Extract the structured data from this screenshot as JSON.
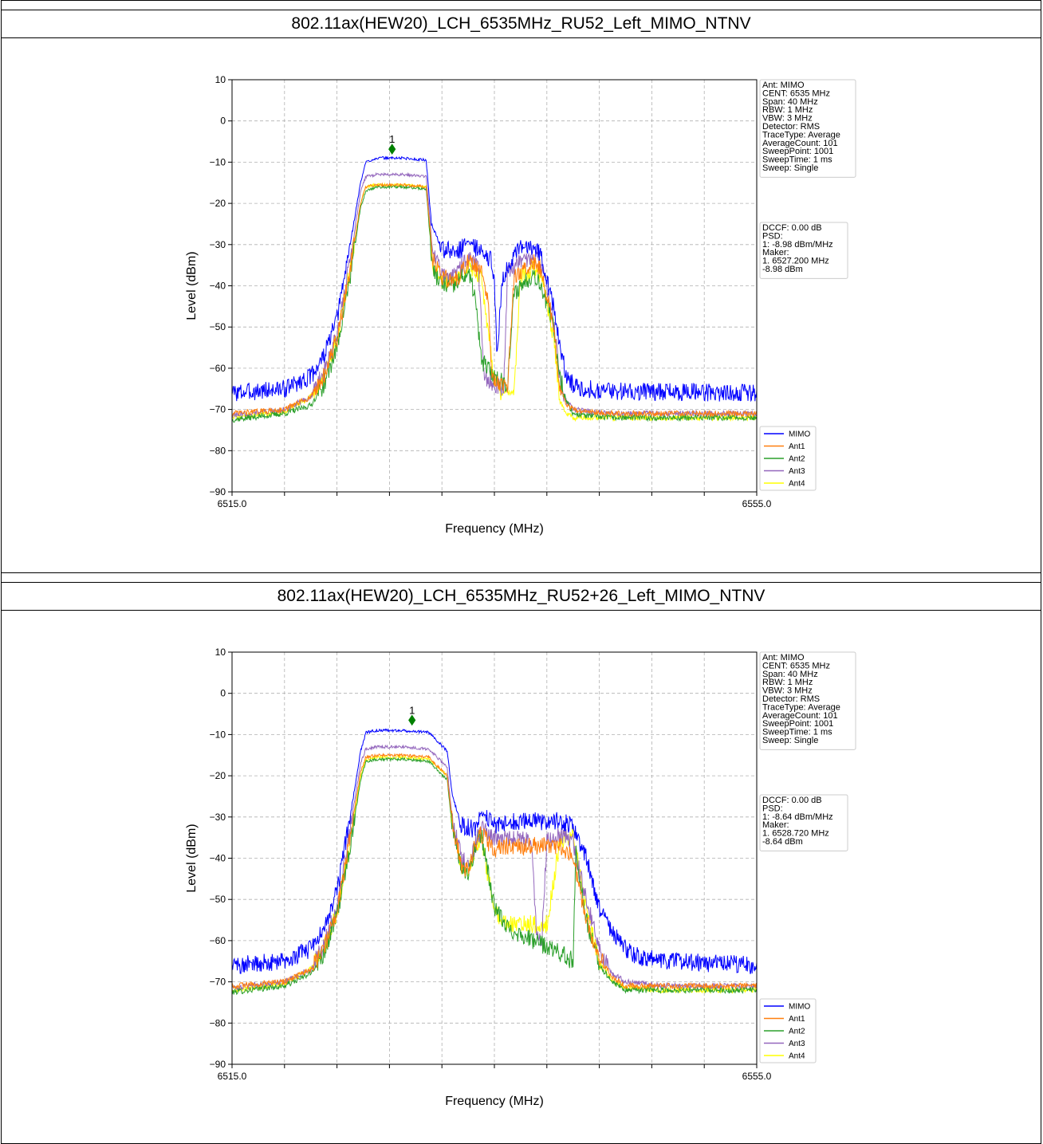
{
  "colors": {
    "MIMO": "#0000ff",
    "Ant1": "#ff7f0e",
    "Ant2": "#2ca02c",
    "Ant3": "#9467bd",
    "Ant4": "#ffff00",
    "marker": "#008000",
    "grid": "#b0b0b0"
  },
  "chart_data": [
    {
      "type": "line",
      "title": "802.11ax(HEW20)_LCH_6535MHz_RU52_Left_MIMO_NTNV",
      "xlabel": "Frequency (MHz)",
      "ylabel": "Level (dBm)",
      "xlim": [
        6515.0,
        6555.0
      ],
      "ylim": [
        -90,
        10
      ],
      "x_tick_labels": [
        "6515.0",
        "6555.0"
      ],
      "x_tick_values": [
        6515,
        6519,
        6523,
        6527,
        6531,
        6535,
        6539,
        6543,
        6547,
        6551,
        6555
      ],
      "y_ticks": [
        10,
        0,
        -10,
        -20,
        -30,
        -40,
        -50,
        -60,
        -70,
        -80,
        -90
      ],
      "grid": true,
      "legend_position": "lower-right outside",
      "info_box": [
        "Ant: MIMO",
        "CENT: 6535 MHz",
        "Span: 40 MHz",
        "RBW: 1 MHz",
        "VBW: 3 MHz",
        "Detector: RMS",
        "TraceType: Average",
        "AverageCount: 101",
        "SweepPoint: 1001",
        "SweepTime: 1 ms",
        "Sweep: Single"
      ],
      "result_box": [
        "DCCF: 0.00 dB",
        "PSD:",
        "1: -8.98 dBm/MHz",
        "Maker:",
        "1. 6527.200 MHz",
        "   -8.98 dBm"
      ],
      "marker": {
        "label": "1",
        "x": 6527.2,
        "y": -8.98
      },
      "series": [
        {
          "name": "MIMO",
          "x": [
            6515,
            6519,
            6521,
            6522,
            6523,
            6524,
            6524.8,
            6525.2,
            6526,
            6528,
            6529.8,
            6530.2,
            6531,
            6532,
            6532.5,
            6533,
            6534,
            6534.8,
            6535,
            6535.2,
            6535.6,
            6536,
            6536.5,
            6537,
            6538,
            6538.6,
            6539.5,
            6540,
            6540.5,
            6541,
            6542,
            6544,
            6555
          ],
          "y": [
            -66,
            -65,
            -62,
            -57,
            -48,
            -30,
            -15,
            -10,
            -9,
            -9,
            -9.5,
            -25,
            -31,
            -32,
            -31,
            -29,
            -32,
            -34,
            -38,
            -58,
            -38,
            -36,
            -33,
            -31,
            -30,
            -33,
            -45,
            -55,
            -62,
            -64,
            -65,
            -65.5,
            -66
          ]
        },
        {
          "name": "Ant1",
          "x": [
            6515,
            6519,
            6521,
            6522,
            6523,
            6524,
            6524.8,
            6525.2,
            6526,
            6528,
            6529.8,
            6530.3,
            6531,
            6532,
            6532.5,
            6533,
            6534,
            6534.5,
            6534.8,
            6535.4,
            6536,
            6536.5,
            6537,
            6538,
            6538.6,
            6539.5,
            6540,
            6540.5,
            6541,
            6542,
            6544,
            6555
          ],
          "y": [
            -71,
            -70,
            -67,
            -62,
            -53,
            -36,
            -20,
            -16,
            -15.5,
            -15.5,
            -16,
            -33,
            -38,
            -39,
            -37,
            -34,
            -37,
            -43,
            -62,
            -64,
            -65,
            -38,
            -37,
            -34,
            -36,
            -50,
            -65,
            -69,
            -70,
            -70.5,
            -71,
            -71
          ]
        },
        {
          "name": "Ant2",
          "x": [
            6515,
            6519,
            6521,
            6522,
            6523,
            6524,
            6524.8,
            6525.2,
            6526,
            6528,
            6529.8,
            6530.3,
            6531,
            6532,
            6532.5,
            6533,
            6533.5,
            6534,
            6535,
            6536,
            6536.5,
            6537,
            6538,
            6538.6,
            6539.5,
            6540,
            6540.5,
            6541,
            6542,
            6544,
            6555
          ],
          "y": [
            -72.5,
            -71,
            -69,
            -64,
            -55,
            -38,
            -21,
            -17,
            -16,
            -16,
            -16.5,
            -36,
            -40,
            -40,
            -38,
            -37,
            -42,
            -58,
            -62,
            -64,
            -42,
            -40,
            -37,
            -40,
            -50,
            -62,
            -68,
            -71,
            -71.5,
            -72,
            -72
          ]
        },
        {
          "name": "Ant3",
          "x": [
            6515,
            6519,
            6521,
            6522,
            6523,
            6524,
            6524.8,
            6525.2,
            6526,
            6528,
            6529.8,
            6530.3,
            6531,
            6532,
            6532.5,
            6533,
            6533.8,
            6534.2,
            6535,
            6535.7,
            6536,
            6536.5,
            6537,
            6538,
            6538.6,
            6539.5,
            6540,
            6540.5,
            6541,
            6542,
            6544,
            6555
          ],
          "y": [
            -71.5,
            -70,
            -67,
            -61,
            -52,
            -34,
            -17,
            -13.5,
            -13,
            -13,
            -13.5,
            -32,
            -37,
            -38,
            -35,
            -33,
            -36,
            -62,
            -64,
            -65,
            -37,
            -36,
            -34,
            -33,
            -35,
            -48,
            -63,
            -68,
            -70,
            -70.5,
            -71,
            -71
          ]
        },
        {
          "name": "Ant4",
          "x": [
            6515,
            6519,
            6521,
            6522,
            6523,
            6524,
            6524.8,
            6525.2,
            6526,
            6528,
            6529.8,
            6530.3,
            6531,
            6532,
            6532.5,
            6533,
            6534,
            6535,
            6535.5,
            6536,
            6536.5,
            6537,
            6538,
            6538.6,
            6539.5,
            6540,
            6540.5,
            6541,
            6542,
            6544,
            6555
          ],
          "y": [
            -72,
            -70.5,
            -67,
            -62,
            -53,
            -36,
            -20,
            -16,
            -15.5,
            -15.5,
            -16,
            -35,
            -39,
            -39,
            -37,
            -35,
            -38,
            -62,
            -66,
            -66,
            -66,
            -38,
            -36,
            -38,
            -52,
            -68,
            -71,
            -72,
            -72,
            -72,
            -72
          ]
        }
      ]
    },
    {
      "type": "line",
      "title": "802.11ax(HEW20)_LCH_6535MHz_RU52+26_Left_MIMO_NTNV",
      "xlabel": "Frequency (MHz)",
      "ylabel": "Level (dBm)",
      "xlim": [
        6515.0,
        6555.0
      ],
      "ylim": [
        -90,
        10
      ],
      "x_tick_labels": [
        "6515.0",
        "6555.0"
      ],
      "x_tick_values": [
        6515,
        6519,
        6523,
        6527,
        6531,
        6535,
        6539,
        6543,
        6547,
        6551,
        6555
      ],
      "y_ticks": [
        10,
        0,
        -10,
        -20,
        -30,
        -40,
        -50,
        -60,
        -70,
        -80,
        -90
      ],
      "grid": true,
      "legend_position": "lower-right outside",
      "info_box": [
        "Ant: MIMO",
        "CENT: 6535 MHz",
        "Span: 40 MHz",
        "RBW: 1 MHz",
        "VBW: 3 MHz",
        "Detector: RMS",
        "TraceType: Average",
        "AverageCount: 101",
        "SweepPoint: 1001",
        "SweepTime: 1 ms",
        "Sweep: Single"
      ],
      "result_box": [
        "DCCF: 0.00 dB",
        "PSD:",
        "1: -8.64 dBm/MHz",
        "Maker:",
        "1. 6528.720 MHz",
        "   -8.64 dBm"
      ],
      "marker": {
        "label": "1",
        "x": 6528.72,
        "y": -8.64
      },
      "series": [
        {
          "name": "MIMO",
          "x": [
            6515,
            6519,
            6521,
            6522,
            6523,
            6524,
            6524.8,
            6525.2,
            6526,
            6528,
            6530,
            6531.4,
            6531.8,
            6532.5,
            6533.5,
            6534,
            6535,
            6536,
            6538,
            6540,
            6541,
            6542,
            6543,
            6544,
            6545,
            6546,
            6548,
            6555
          ],
          "y": [
            -66,
            -65,
            -62,
            -57,
            -48,
            -30,
            -14,
            -9.5,
            -9,
            -9,
            -9.5,
            -14,
            -25,
            -32,
            -33,
            -29,
            -32,
            -31,
            -31,
            -31,
            -32,
            -40,
            -52,
            -58,
            -62,
            -64,
            -65,
            -66
          ]
        },
        {
          "name": "Ant1",
          "x": [
            6515,
            6519,
            6521,
            6522,
            6523,
            6524,
            6524.8,
            6525.2,
            6526,
            6528,
            6530,
            6531.4,
            6531.8,
            6532.5,
            6533,
            6533.5,
            6534,
            6535,
            6536,
            6538,
            6540,
            6541,
            6542,
            6543,
            6544,
            6545,
            6546,
            6548,
            6555
          ],
          "y": [
            -71,
            -70,
            -67,
            -62,
            -53,
            -35,
            -19,
            -15.5,
            -15,
            -15,
            -15.5,
            -20,
            -32,
            -42,
            -43,
            -37,
            -34,
            -38,
            -37,
            -37,
            -37,
            -40,
            -55,
            -64,
            -69,
            -71,
            -71,
            -71,
            -71
          ]
        },
        {
          "name": "Ant2",
          "x": [
            6515,
            6519,
            6521,
            6522,
            6523,
            6524,
            6524.8,
            6525.2,
            6526,
            6528,
            6530,
            6531.4,
            6531.8,
            6532.5,
            6533,
            6533.5,
            6534,
            6535,
            6536,
            6538,
            6540,
            6541,
            6541.2,
            6542,
            6543,
            6544,
            6545,
            6548,
            6555
          ],
          "y": [
            -72.5,
            -71,
            -68,
            -63,
            -54,
            -37,
            -21,
            -16.5,
            -16,
            -16,
            -16.5,
            -21,
            -33,
            -42,
            -44,
            -38,
            -34,
            -52,
            -57,
            -60,
            -63,
            -65,
            -38,
            -55,
            -66,
            -70,
            -72,
            -72,
            -72
          ]
        },
        {
          "name": "Ant3",
          "x": [
            6515,
            6519,
            6521,
            6522,
            6523,
            6524,
            6524.8,
            6525.2,
            6526,
            6528,
            6530,
            6531.4,
            6531.8,
            6532.5,
            6533,
            6533.5,
            6534,
            6535,
            6536,
            6537.8,
            6538.2,
            6538.6,
            6539,
            6540,
            6541,
            6542,
            6543,
            6544,
            6545,
            6548,
            6555
          ],
          "y": [
            -71.5,
            -70,
            -67,
            -61,
            -52,
            -33,
            -17,
            -13.5,
            -13,
            -13,
            -13.5,
            -18,
            -31,
            -40,
            -42,
            -37,
            -33,
            -35,
            -35,
            -35,
            -58,
            -60,
            -36,
            -34,
            -36,
            -50,
            -62,
            -68,
            -70,
            -71,
            -71
          ]
        },
        {
          "name": "Ant4",
          "x": [
            6515,
            6519,
            6521,
            6522,
            6523,
            6524,
            6524.8,
            6525.2,
            6526,
            6528,
            6530,
            6531.4,
            6531.8,
            6532.5,
            6533,
            6533.5,
            6534,
            6535,
            6536,
            6538,
            6539,
            6540,
            6541,
            6542,
            6543,
            6544,
            6545,
            6548,
            6555
          ],
          "y": [
            -72,
            -70.5,
            -67,
            -62,
            -53,
            -36,
            -20,
            -16,
            -15.5,
            -15.5,
            -16,
            -20,
            -33,
            -42,
            -44,
            -38,
            -35,
            -53,
            -56,
            -56,
            -56,
            -36,
            -34,
            -52,
            -65,
            -70,
            -71.5,
            -72,
            -72
          ]
        }
      ]
    }
  ]
}
